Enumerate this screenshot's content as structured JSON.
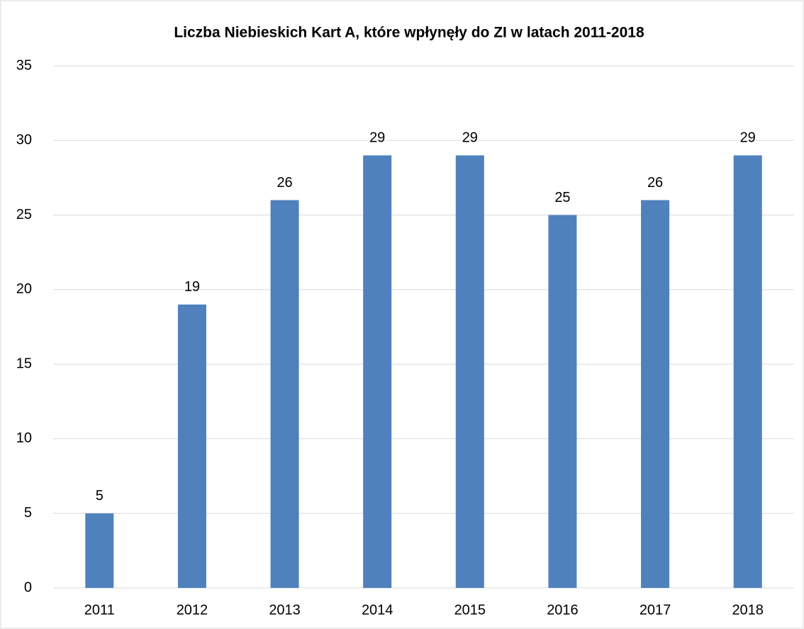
{
  "chart_data": {
    "type": "bar",
    "title": "Liczba Niebieskich Kart A, które wpłynęły do ZI w latach 2011-2018",
    "categories": [
      "2011",
      "2012",
      "2013",
      "2014",
      "2015",
      "2016",
      "2017",
      "2018"
    ],
    "values": [
      5,
      19,
      26,
      29,
      29,
      25,
      26,
      29
    ],
    "color": "#4f81bd",
    "ylim": [
      0,
      35
    ],
    "yticks": [
      0,
      5,
      10,
      15,
      20,
      25,
      30,
      35
    ],
    "grid": true,
    "data_labels": true
  }
}
